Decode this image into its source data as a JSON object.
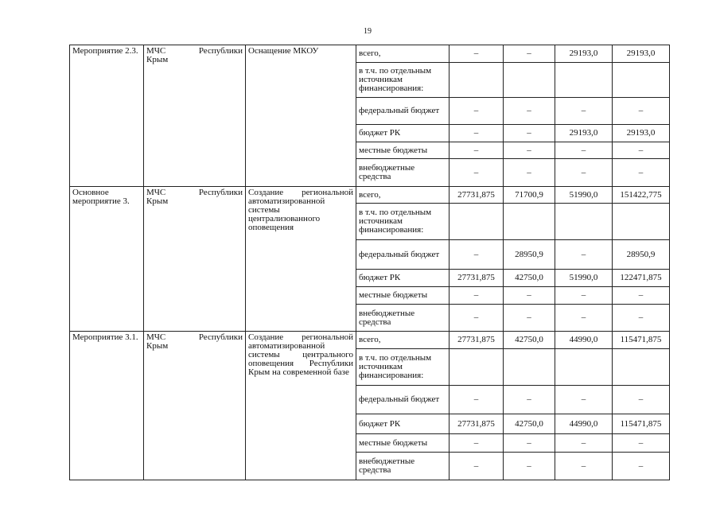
{
  "page_number": "19",
  "groups": [
    {
      "name": "Мероприятие 2.3.",
      "resp_a": "МЧС",
      "resp_b": "Республики",
      "resp_c": "Крым",
      "desc": "Оснащение МКОУ",
      "rows": [
        {
          "src": "всего,",
          "v": [
            "–",
            "–",
            "29193,0",
            "29193,0"
          ]
        },
        {
          "src": "в т.ч. по отдельным источникам финансирования:",
          "v": [
            "",
            "",
            "",
            ""
          ]
        },
        {
          "src": "федеральный бюджет",
          "v": [
            "–",
            "–",
            "–",
            "–"
          ]
        },
        {
          "src": "бюджет РК",
          "v": [
            "–",
            "–",
            "29193,0",
            "29193,0"
          ]
        },
        {
          "src": "местные бюджеты",
          "v": [
            "–",
            "–",
            "–",
            "–"
          ]
        },
        {
          "src": "внебюджетные средства",
          "v": [
            "–",
            "–",
            "–",
            "–"
          ]
        }
      ]
    },
    {
      "name": "Основное мероприятие 3.",
      "resp_a": "МЧС",
      "resp_b": "Республики",
      "resp_c": "Крым",
      "desc": "Создание региональной автоматизированной системы централизованного оповещения",
      "rows": [
        {
          "src": "всего,",
          "v": [
            "27731,875",
            "71700,9",
            "51990,0",
            "151422,775"
          ]
        },
        {
          "src": "в т.ч. по отдельным источникам финансирования:",
          "v": [
            "",
            "",
            "",
            ""
          ]
        },
        {
          "src": "федеральный бюджет",
          "v": [
            "–",
            "28950,9",
            "–",
            "28950,9"
          ]
        },
        {
          "src": "бюджет РК",
          "v": [
            "27731,875",
            "42750,0",
            "51990,0",
            "122471,875"
          ]
        },
        {
          "src": "местные бюджеты",
          "v": [
            "–",
            "–",
            "–",
            "–"
          ]
        },
        {
          "src": "внебюджетные средства",
          "v": [
            "–",
            "–",
            "–",
            "–"
          ]
        }
      ]
    },
    {
      "name": "Мероприятие 3.1.",
      "resp_a": "МЧС",
      "resp_b": "Республики",
      "resp_c": "Крым",
      "desc": "Создание региональной автоматизированной системы центрального оповещения Республики Крым на современной базе",
      "rows": [
        {
          "src": "всего,",
          "v": [
            "27731,875",
            "42750,0",
            "44990,0",
            "115471,875"
          ]
        },
        {
          "src": "в т.ч. по отдельным источникам финансирования:",
          "v": [
            "",
            "",
            "",
            ""
          ]
        },
        {
          "src": "федеральный бюджет",
          "v": [
            "–",
            "–",
            "–",
            "–"
          ]
        },
        {
          "src": "бюджет РК",
          "v": [
            "27731,875",
            "42750,0",
            "44990,0",
            "115471,875"
          ]
        },
        {
          "src": "местные бюджеты",
          "v": [
            "–",
            "–",
            "–",
            "–"
          ]
        },
        {
          "src": "внебюджетные средства",
          "v": [
            "–",
            "–",
            "–",
            "–"
          ]
        }
      ]
    }
  ]
}
